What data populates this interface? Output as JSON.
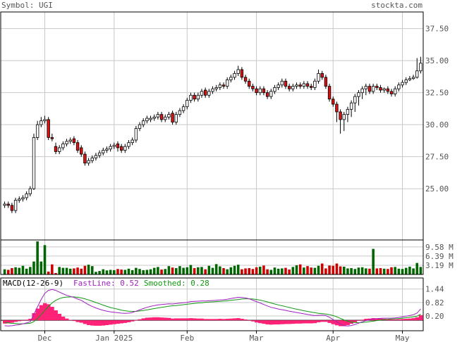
{
  "header": {
    "symbol_label": "Symbol: UGI",
    "site": "stockta.com"
  },
  "colors": {
    "grid": "#c8c8c8",
    "frame": "#000000",
    "up": "#ffffff",
    "down": "#dd1111",
    "vol_up": "#006600",
    "vol_down": "#cc0000",
    "fast_line": "#a020c0",
    "smooth_line": "#119911",
    "histogram": "#ff2277",
    "label_text": "#555555"
  },
  "x_labels": [
    "Dec",
    "Jan 2025",
    "Feb",
    "Mar",
    "Apr",
    "May"
  ],
  "chart_data": [
    {
      "type": "candlestick",
      "title": "Symbol: UGI",
      "y_ticks": [
        37.5,
        35.0,
        32.5,
        30.0,
        27.5,
        25.0
      ],
      "y_tick_labels": [
        "37.50",
        "35.00",
        "32.50",
        "30.00",
        "27.50",
        "25.00"
      ],
      "ylim": [
        21.0,
        38.8
      ],
      "close": [
        23.8,
        23.7,
        23.3,
        24.1,
        24.2,
        24.3,
        24.6,
        25.0,
        29.0,
        30.0,
        30.3,
        30.4,
        29.0,
        28.9,
        27.9,
        28.2,
        28.5,
        28.7,
        28.8,
        28.6,
        28.0,
        27.7,
        27.0,
        27.2,
        27.4,
        27.6,
        27.8,
        28.0,
        28.1,
        28.3,
        28.4,
        28.2,
        28.0,
        28.3,
        28.6,
        28.8,
        29.7,
        30.0,
        30.3,
        30.5,
        30.5,
        30.6,
        30.8,
        30.4,
        30.6,
        30.8,
        30.2,
        30.8,
        31.1,
        31.4,
        31.9,
        32.3,
        32.0,
        32.3,
        32.6,
        32.3,
        32.6,
        32.8,
        32.9,
        33.1,
        33.0,
        33.5,
        33.7,
        34.0,
        34.3,
        33.7,
        33.4,
        33.0,
        32.8,
        32.5,
        32.8,
        32.5,
        32.2,
        32.6,
        32.9,
        33.1,
        33.4,
        33.0,
        32.8,
        33.0,
        33.1,
        33.0,
        33.2,
        33.0,
        32.9,
        33.4,
        34.0,
        33.7,
        33.0,
        32.0,
        31.6,
        31.0,
        30.4,
        30.8,
        31.2,
        31.7,
        32.2,
        32.5,
        32.8,
        33.0,
        32.6,
        33.0,
        32.9,
        32.7,
        32.8,
        32.6,
        32.4,
        32.8,
        33.1,
        33.3,
        33.5,
        33.6,
        33.7,
        34.2,
        34.8
      ],
      "open": [
        23.7,
        23.8,
        23.7,
        23.3,
        24.1,
        24.2,
        24.3,
        24.6,
        25.0,
        29.0,
        30.0,
        30.3,
        30.4,
        29.0,
        28.3,
        27.9,
        28.2,
        28.5,
        28.7,
        28.9,
        28.6,
        28.2,
        27.7,
        27.0,
        27.2,
        27.4,
        27.6,
        27.8,
        28.0,
        28.1,
        28.3,
        28.5,
        28.3,
        28.0,
        28.3,
        28.6,
        28.8,
        29.7,
        30.0,
        30.3,
        30.4,
        30.5,
        30.6,
        30.8,
        30.4,
        30.6,
        30.9,
        30.2,
        30.8,
        31.1,
        31.4,
        31.9,
        32.3,
        32.0,
        32.3,
        32.7,
        32.3,
        32.6,
        32.8,
        32.9,
        33.1,
        33.0,
        33.5,
        33.7,
        34.0,
        34.3,
        33.7,
        33.4,
        33.0,
        32.8,
        32.5,
        32.8,
        32.5,
        32.2,
        32.6,
        32.9,
        33.1,
        33.4,
        33.0,
        32.8,
        33.0,
        33.1,
        33.0,
        33.2,
        33.0,
        32.9,
        33.4,
        34.0,
        33.7,
        33.0,
        32.0,
        31.6,
        31.0,
        30.4,
        30.8,
        31.2,
        31.7,
        32.2,
        32.5,
        32.8,
        33.0,
        32.6,
        33.0,
        32.9,
        32.7,
        32.8,
        32.6,
        32.4,
        32.8,
        33.1,
        33.3,
        33.5,
        33.6,
        33.7,
        34.2
      ],
      "high": [
        24.0,
        24.0,
        23.9,
        24.3,
        24.4,
        24.5,
        24.8,
        25.2,
        29.3,
        30.3,
        30.6,
        30.7,
        30.6,
        29.3,
        28.6,
        28.4,
        28.7,
        28.9,
        29.0,
        29.1,
        28.8,
        28.4,
        27.9,
        27.4,
        27.6,
        27.8,
        28.0,
        28.2,
        28.3,
        28.5,
        28.6,
        28.7,
        28.5,
        28.5,
        28.8,
        29.0,
        29.9,
        30.2,
        30.5,
        30.7,
        30.7,
        30.8,
        31.0,
        31.0,
        30.8,
        31.0,
        31.1,
        31.0,
        31.3,
        31.6,
        32.1,
        32.5,
        32.5,
        32.5,
        32.8,
        32.9,
        32.8,
        33.0,
        33.1,
        33.3,
        33.3,
        33.7,
        33.9,
        34.2,
        34.6,
        34.5,
        33.9,
        33.6,
        33.2,
        33.0,
        33.0,
        33.0,
        32.7,
        32.8,
        33.1,
        33.3,
        33.6,
        33.6,
        33.2,
        33.2,
        33.3,
        33.3,
        33.4,
        33.4,
        33.2,
        33.6,
        34.3,
        34.2,
        33.9,
        33.2,
        32.2,
        31.8,
        31.2,
        31.0,
        31.4,
        31.9,
        32.4,
        32.7,
        33.0,
        33.2,
        33.2,
        33.2,
        33.2,
        33.1,
        32.9,
        33.0,
        32.8,
        33.0,
        33.3,
        33.5,
        33.7,
        33.8,
        33.9,
        35.2,
        35.3
      ],
      "low": [
        23.5,
        23.5,
        23.1,
        23.1,
        23.9,
        24.0,
        24.1,
        24.4,
        24.9,
        28.8,
        29.8,
        30.1,
        28.8,
        28.7,
        27.7,
        27.7,
        28.0,
        28.3,
        28.5,
        28.4,
        27.8,
        27.5,
        26.8,
        26.8,
        27.0,
        27.2,
        27.4,
        27.6,
        27.8,
        27.9,
        28.1,
        27.9,
        27.8,
        27.8,
        28.1,
        28.4,
        28.6,
        29.5,
        29.8,
        30.1,
        30.2,
        30.3,
        30.4,
        30.2,
        30.2,
        30.4,
        30.0,
        30.0,
        30.6,
        30.9,
        31.2,
        31.7,
        31.8,
        31.8,
        32.1,
        32.1,
        32.1,
        32.4,
        32.6,
        32.7,
        32.8,
        32.8,
        33.3,
        33.5,
        33.8,
        33.5,
        33.2,
        32.8,
        32.6,
        32.3,
        32.3,
        32.3,
        32.0,
        32.0,
        32.4,
        32.7,
        32.9,
        32.8,
        32.6,
        32.6,
        32.8,
        32.8,
        32.8,
        32.8,
        32.7,
        32.7,
        33.2,
        33.5,
        32.8,
        31.8,
        31.4,
        30.2,
        29.3,
        29.5,
        30.2,
        30.6,
        31.0,
        31.5,
        32.0,
        32.3,
        32.4,
        32.4,
        32.7,
        32.5,
        32.5,
        32.4,
        32.2,
        32.2,
        32.6,
        32.9,
        33.1,
        33.4,
        33.5,
        33.6,
        34.0
      ]
    },
    {
      "type": "bar",
      "title": "Volume",
      "y_tick_labels": [
        "9.58 M",
        "6.39 M",
        "3.19 M"
      ],
      "y_ticks": [
        9.58,
        6.39,
        3.19
      ],
      "ylim": [
        0,
        12.0
      ],
      "values": [
        1.8,
        1.6,
        2.2,
        2.5,
        2.3,
        3.0,
        2.0,
        2.6,
        4.5,
        11.5,
        4.5,
        10.2,
        1.0,
        3.5,
        0.5,
        2.6,
        2.3,
        2.3,
        2.0,
        2.1,
        2.4,
        2.0,
        3.0,
        3.4,
        2.9,
        0.9,
        1.2,
        1.8,
        1.4,
        1.6,
        1.5,
        1.9,
        1.7,
        1.6,
        2.0,
        1.5,
        2.3,
        1.9,
        1.5,
        1.6,
        1.8,
        2.3,
        2.6,
        1.7,
        1.9,
        2.9,
        2.4,
        2.2,
        2.9,
        2.3,
        2.5,
        3.3,
        2.2,
        2.5,
        2.6,
        1.8,
        3.0,
        2.3,
        3.6,
        2.8,
        2.2,
        1.8,
        2.5,
        3.0,
        3.4,
        1.8,
        2.1,
        2.2,
        1.9,
        2.5,
        2.7,
        3.1,
        1.8,
        1.6,
        2.4,
        2.0,
        2.1,
        2.3,
        1.7,
        2.6,
        3.2,
        3.5,
        2.4,
        2.9,
        2.4,
        2.3,
        3.0,
        3.8,
        2.1,
        3.1,
        3.0,
        3.8,
        2.8,
        2.7,
        2.1,
        2.2,
        1.9,
        2.4,
        2.5,
        2.1,
        2.0,
        8.9,
        2.1,
        2.2,
        2.0,
        1.9,
        2.5,
        2.6,
        2.0,
        1.9,
        2.3,
        2.7,
        2.1,
        4.0,
        2.6
      ],
      "y_axis_max_label": "9.58 M"
    },
    {
      "type": "line",
      "title": "MACD(12-26-9)",
      "indicator_label": "MACD(12-26-9)",
      "fast_label": "FastLine: 0.52",
      "smooth_label": "Smoothed: 0.28",
      "y_ticks": [
        1.44,
        0.82,
        0.2
      ],
      "y_tick_labels": [
        "1.44",
        "0.82",
        "0.20"
      ],
      "ylim": [
        -0.48,
        1.95
      ],
      "series": [
        {
          "name": "FastLine",
          "values": [
            -0.25,
            -0.26,
            -0.25,
            -0.22,
            -0.2,
            -0.16,
            -0.12,
            -0.07,
            0.27,
            0.62,
            0.96,
            1.24,
            1.38,
            1.42,
            1.38,
            1.3,
            1.22,
            1.15,
            1.1,
            1.05,
            0.98,
            0.92,
            0.82,
            0.72,
            0.64,
            0.57,
            0.51,
            0.46,
            0.42,
            0.39,
            0.37,
            0.35,
            0.33,
            0.32,
            0.33,
            0.36,
            0.42,
            0.48,
            0.54,
            0.6,
            0.64,
            0.68,
            0.71,
            0.73,
            0.74,
            0.76,
            0.75,
            0.77,
            0.79,
            0.81,
            0.83,
            0.86,
            0.87,
            0.88,
            0.89,
            0.89,
            0.9,
            0.91,
            0.92,
            0.94,
            0.95,
            0.97,
            1.0,
            1.03,
            1.06,
            1.05,
            1.03,
            0.99,
            0.93,
            0.86,
            0.8,
            0.73,
            0.66,
            0.6,
            0.56,
            0.52,
            0.49,
            0.46,
            0.42,
            0.39,
            0.36,
            0.33,
            0.3,
            0.27,
            0.24,
            0.22,
            0.23,
            0.24,
            0.22,
            0.14,
            0.04,
            -0.07,
            -0.18,
            -0.25,
            -0.26,
            -0.24,
            -0.19,
            -0.13,
            -0.07,
            -0.01,
            0.02,
            0.06,
            0.08,
            0.09,
            0.1,
            0.1,
            0.1,
            0.11,
            0.13,
            0.16,
            0.19,
            0.22,
            0.26,
            0.33,
            0.52
          ]
        },
        {
          "name": "Smoothed",
          "values": [
            -0.1,
            -0.12,
            -0.14,
            -0.15,
            -0.16,
            -0.16,
            -0.15,
            -0.14,
            -0.06,
            0.08,
            0.26,
            0.45,
            0.64,
            0.8,
            0.92,
            1.0,
            1.05,
            1.07,
            1.08,
            1.08,
            1.06,
            1.03,
            0.99,
            0.94,
            0.88,
            0.82,
            0.76,
            0.7,
            0.64,
            0.59,
            0.55,
            0.51,
            0.47,
            0.44,
            0.42,
            0.41,
            0.41,
            0.43,
            0.45,
            0.48,
            0.51,
            0.54,
            0.57,
            0.6,
            0.62,
            0.65,
            0.67,
            0.68,
            0.7,
            0.72,
            0.74,
            0.76,
            0.78,
            0.8,
            0.81,
            0.83,
            0.84,
            0.85,
            0.86,
            0.87,
            0.89,
            0.9,
            0.92,
            0.94,
            0.96,
            0.98,
            0.99,
            0.99,
            0.98,
            0.96,
            0.93,
            0.89,
            0.85,
            0.8,
            0.75,
            0.71,
            0.67,
            0.63,
            0.59,
            0.55,
            0.51,
            0.48,
            0.44,
            0.41,
            0.38,
            0.35,
            0.32,
            0.31,
            0.29,
            0.26,
            0.22,
            0.16,
            0.09,
            0.02,
            -0.04,
            -0.08,
            -0.1,
            -0.11,
            -0.1,
            -0.08,
            -0.06,
            -0.04,
            -0.01,
            0.01,
            0.03,
            0.05,
            0.06,
            0.07,
            0.08,
            0.1,
            0.12,
            0.14,
            0.16,
            0.19,
            0.28
          ]
        }
      ]
    }
  ]
}
